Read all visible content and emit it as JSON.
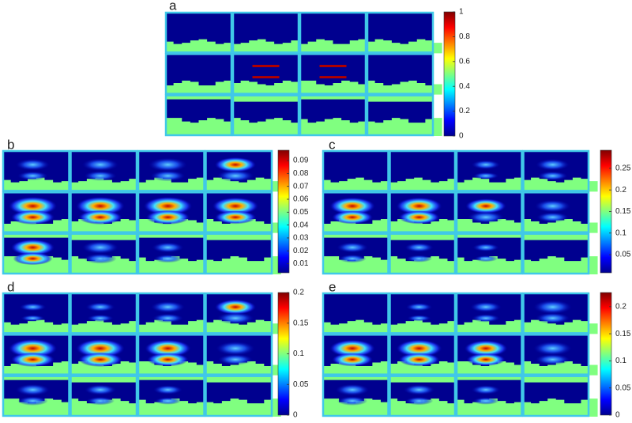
{
  "panels": [
    {
      "label": "a",
      "colorbar": {
        "clim": [
          0,
          1
        ],
        "ticks": [
          0,
          0.2,
          0.4,
          0.6,
          0.8,
          1
        ]
      }
    },
    {
      "label": "b",
      "colorbar": {
        "clim": [
          0.003,
          0.098
        ],
        "ticks": [
          0.01,
          0.02,
          0.03,
          0.04,
          0.05,
          0.06,
          0.07,
          0.08,
          0.09
        ]
      }
    },
    {
      "label": "c",
      "colorbar": {
        "clim": [
          0.008,
          0.292
        ],
        "ticks": [
          0.05,
          0.1,
          0.15,
          0.2,
          0.25
        ]
      }
    },
    {
      "label": "d",
      "colorbar": {
        "clim": [
          0,
          0.2
        ],
        "ticks": [
          0,
          0.05,
          0.1,
          0.15,
          0.2
        ]
      }
    },
    {
      "label": "e",
      "colorbar": {
        "clim": [
          0,
          0.226
        ],
        "ticks": [
          0,
          0.05,
          0.1,
          0.15,
          0.2
        ]
      }
    }
  ]
}
